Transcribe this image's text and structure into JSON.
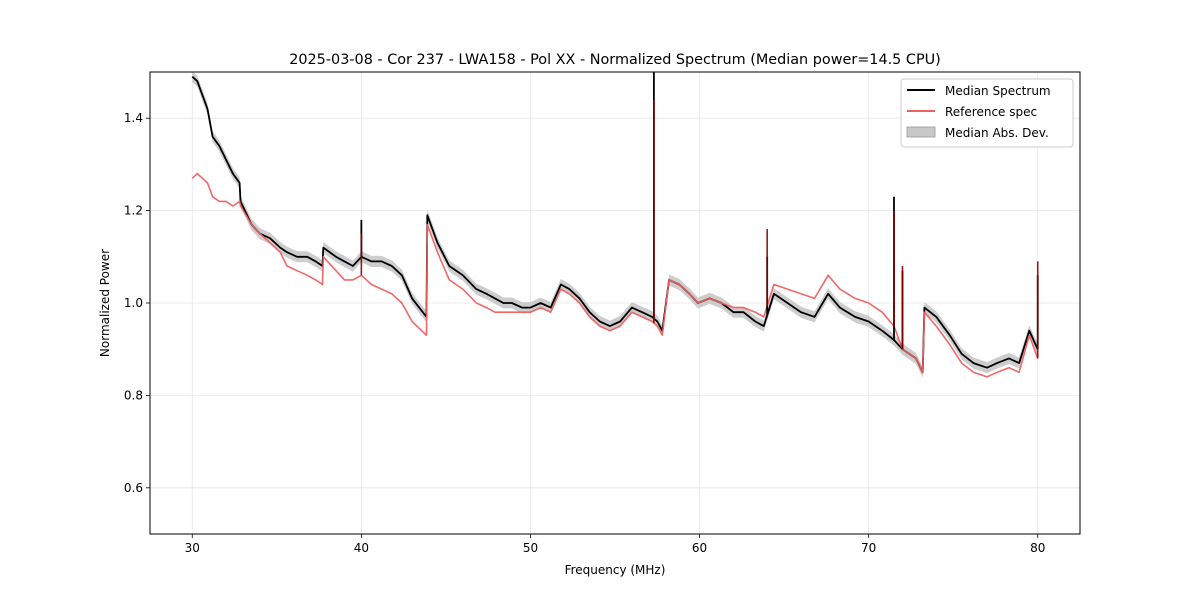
{
  "chart_data": {
    "type": "line",
    "title": "2025-03-08 - Cor 237 - LWA158 - Pol XX - Normalized Spectrum (Median power=14.5 CPU)",
    "xlabel": "Frequency (MHz)",
    "ylabel": "Normalized Power",
    "xlim": [
      27.5,
      82.5
    ],
    "ylim": [
      0.5,
      1.5
    ],
    "xticks": [
      30,
      40,
      50,
      60,
      70,
      80
    ],
    "yticks": [
      0.6,
      0.8,
      1.0,
      1.2,
      1.4
    ],
    "grid": true,
    "legend_position": "top-right",
    "legend": [
      "Median Spectrum",
      "Reference spec",
      "Median Abs. Dev."
    ],
    "colors": {
      "median": "#000000",
      "reference": "#f06060",
      "mad_fill": "#c8c8c8",
      "overlap": "#8b0000"
    },
    "series": [
      {
        "name": "Median Spectrum",
        "x": [
          30.0,
          30.3,
          30.6,
          30.9,
          31.2,
          31.6,
          32.0,
          32.4,
          32.8,
          32.85,
          33.5,
          34.0,
          34.6,
          35.2,
          35.6,
          36.2,
          36.8,
          37.3,
          37.7,
          37.75,
          38.5,
          39.0,
          39.5,
          40.0,
          40.6,
          41.2,
          41.8,
          42.4,
          43.0,
          43.85,
          43.9,
          44.5,
          45.2,
          46.0,
          46.8,
          47.4,
          47.9,
          48.4,
          48.9,
          49.5,
          50.0,
          50.6,
          51.2,
          51.8,
          52.3,
          52.9,
          53.5,
          54.1,
          54.7,
          55.3,
          56.0,
          56.6,
          57.2,
          57.5,
          57.8,
          58.2,
          58.8,
          59.4,
          59.9,
          60.6,
          61.3,
          62.0,
          62.6,
          63.3,
          63.8,
          64.4,
          65.2,
          66.0,
          66.8,
          67.6,
          68.3,
          69.2,
          70.0,
          70.8,
          71.5,
          72.0,
          72.8,
          73.2,
          73.3,
          74.0,
          74.8,
          75.5,
          76.2,
          77.0,
          77.6,
          78.3,
          78.9,
          79.5,
          80.0
        ],
        "values": [
          1.49,
          1.48,
          1.45,
          1.42,
          1.36,
          1.34,
          1.31,
          1.28,
          1.26,
          1.22,
          1.17,
          1.15,
          1.14,
          1.12,
          1.11,
          1.1,
          1.1,
          1.09,
          1.08,
          1.12,
          1.1,
          1.09,
          1.08,
          1.1,
          1.09,
          1.09,
          1.08,
          1.06,
          1.01,
          0.97,
          1.19,
          1.13,
          1.08,
          1.06,
          1.03,
          1.02,
          1.01,
          1.0,
          1.0,
          0.99,
          0.99,
          1.0,
          0.99,
          1.04,
          1.03,
          1.01,
          0.98,
          0.96,
          0.95,
          0.96,
          0.99,
          0.98,
          0.97,
          0.96,
          0.94,
          1.05,
          1.04,
          1.02,
          1.0,
          1.01,
          1.0,
          0.98,
          0.98,
          0.96,
          0.95,
          1.02,
          1.0,
          0.98,
          0.97,
          1.02,
          0.99,
          0.97,
          0.96,
          0.94,
          0.92,
          0.9,
          0.88,
          0.85,
          0.99,
          0.97,
          0.93,
          0.89,
          0.87,
          0.86,
          0.87,
          0.88,
          0.87,
          0.94,
          0.9
        ]
      },
      {
        "name": "Reference spec",
        "x": [
          30.0,
          30.3,
          30.6,
          30.9,
          31.2,
          31.6,
          32.0,
          32.4,
          32.8,
          32.85,
          33.5,
          34.0,
          34.6,
          35.2,
          35.6,
          36.2,
          36.8,
          37.3,
          37.7,
          37.75,
          38.5,
          39.0,
          39.5,
          40.0,
          40.6,
          41.2,
          41.8,
          42.4,
          43.0,
          43.85,
          43.9,
          44.5,
          45.2,
          46.0,
          46.8,
          47.4,
          47.9,
          48.4,
          48.9,
          49.5,
          50.0,
          50.6,
          51.2,
          51.8,
          52.3,
          52.9,
          53.5,
          54.1,
          54.7,
          55.3,
          56.0,
          56.6,
          57.2,
          57.5,
          57.8,
          58.2,
          58.8,
          59.4,
          59.9,
          60.6,
          61.3,
          62.0,
          62.6,
          63.3,
          63.8,
          64.4,
          65.2,
          66.0,
          66.8,
          67.6,
          68.3,
          69.2,
          70.0,
          70.8,
          71.5,
          72.0,
          72.8,
          73.2,
          73.3,
          74.0,
          74.8,
          75.5,
          76.2,
          77.0,
          77.6,
          78.3,
          78.9,
          79.5,
          80.0
        ],
        "values": [
          1.27,
          1.28,
          1.27,
          1.26,
          1.23,
          1.22,
          1.22,
          1.21,
          1.22,
          1.21,
          1.17,
          1.15,
          1.13,
          1.11,
          1.08,
          1.07,
          1.06,
          1.05,
          1.04,
          1.1,
          1.07,
          1.05,
          1.05,
          1.06,
          1.04,
          1.03,
          1.02,
          1.0,
          0.96,
          0.93,
          1.17,
          1.11,
          1.05,
          1.03,
          1.0,
          0.99,
          0.98,
          0.98,
          0.98,
          0.98,
          0.98,
          0.99,
          0.98,
          1.03,
          1.02,
          1.0,
          0.97,
          0.95,
          0.94,
          0.95,
          0.98,
          0.97,
          0.96,
          0.95,
          0.93,
          1.05,
          1.04,
          1.02,
          1.0,
          1.01,
          1.0,
          0.99,
          0.99,
          0.98,
          0.97,
          1.04,
          1.03,
          1.02,
          1.01,
          1.06,
          1.03,
          1.01,
          1.0,
          0.98,
          0.95,
          0.9,
          0.88,
          0.85,
          0.98,
          0.95,
          0.91,
          0.87,
          0.85,
          0.84,
          0.85,
          0.86,
          0.85,
          0.93,
          0.88
        ]
      }
    ],
    "spikes": [
      {
        "x": 40.0,
        "median_peak": 1.18,
        "reference_peak": 1.15
      },
      {
        "x": 57.3,
        "median_peak": 1.5,
        "reference_peak": 1.44
      },
      {
        "x": 64.0,
        "median_peak": 1.1,
        "reference_peak": 1.16
      },
      {
        "x": 71.5,
        "median_peak": 1.23,
        "reference_peak": 1.2
      },
      {
        "x": 72.0,
        "median_peak": 1.07,
        "reference_peak": 1.08
      },
      {
        "x": 80.0,
        "median_peak": 1.06,
        "reference_peak": 1.09
      }
    ],
    "mad_halfwidth": 0.012
  }
}
